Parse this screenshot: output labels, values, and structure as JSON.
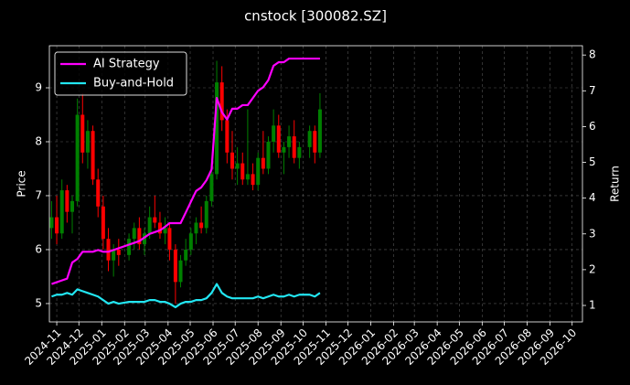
{
  "chart_data": {
    "type": "candlestick",
    "title": "cnstock [300082.SZ]",
    "ylabel": "Price",
    "y2label": "Return",
    "grid": true,
    "legend": "upper left",
    "x": [
      "2024-10-25",
      "2024-11-01",
      "2024-11-08",
      "2024-11-15",
      "2024-11-22",
      "2024-11-29",
      "2024-12-06",
      "2024-12-13",
      "2024-12-20",
      "2024-12-27",
      "2025-01-03",
      "2025-01-10",
      "2025-01-17",
      "2025-01-24",
      "2025-02-07",
      "2025-02-14",
      "2025-02-21",
      "2025-02-28",
      "2025-03-07",
      "2025-03-14",
      "2025-03-21",
      "2025-03-28",
      "2025-04-03",
      "2025-04-11",
      "2025-04-18",
      "2025-04-25",
      "2025-05-02",
      "2025-05-09",
      "2025-05-16",
      "2025-05-23",
      "2025-05-30",
      "2025-06-06",
      "2025-06-13",
      "2025-06-20",
      "2025-06-27",
      "2025-07-04",
      "2025-07-11",
      "2025-07-18",
      "2025-07-25",
      "2025-08-01",
      "2025-08-08",
      "2025-08-15",
      "2025-08-22",
      "2025-08-29",
      "2025-09-05",
      "2025-09-12",
      "2025-09-19",
      "2025-09-26",
      "2025-10-10",
      "2025-10-17",
      "2025-10-24"
    ],
    "xlim": [
      "2024-10-22",
      "2026-10-15"
    ],
    "xticks": [
      "2024-11",
      "2024-12",
      "2025-01",
      "2025-02",
      "2025-03",
      "2025-04",
      "2025-05",
      "2025-06",
      "2025-07",
      "2025-08",
      "2025-09",
      "2025-10",
      "2025-11",
      "2025-12",
      "2026-01",
      "2026-02",
      "2026-03",
      "2026-04",
      "2026-05",
      "2026-06",
      "2026-07",
      "2026-08",
      "2026-09",
      "2026-10"
    ],
    "ylim": [
      4.66,
      9.78
    ],
    "yticks": [
      5,
      6,
      7,
      8,
      9
    ],
    "y2lim": [
      0.54,
      8.26
    ],
    "y2ticks": [
      1,
      2,
      3,
      4,
      5,
      6,
      7,
      8
    ],
    "candles": {
      "up_color": "#008000",
      "down_color": "#ff0000",
      "open": [
        6.4,
        6.6,
        6.3,
        7.1,
        6.7,
        6.9,
        8.5,
        7.8,
        8.2,
        7.3,
        6.8,
        6.2,
        5.8,
        6.0,
        5.9,
        6.2,
        6.4,
        6.1,
        6.3,
        6.6,
        6.5,
        6.3,
        6.4,
        6.0,
        5.4,
        5.8,
        6.0,
        6.3,
        6.5,
        6.4,
        6.9,
        7.4,
        9.1,
        8.4,
        7.8,
        7.5,
        7.6,
        7.3,
        7.4,
        7.2,
        7.7,
        7.5,
        8.0,
        8.3,
        7.8,
        7.9,
        8.1,
        7.7,
        7.9,
        8.2,
        7.8
      ],
      "high": [
        6.9,
        7.0,
        7.3,
        7.2,
        7.0,
        8.8,
        8.9,
        8.4,
        8.3,
        7.5,
        7.0,
        6.4,
        6.1,
        6.2,
        6.3,
        6.5,
        6.6,
        6.4,
        6.8,
        7.0,
        6.7,
        6.6,
        6.5,
        6.1,
        5.9,
        6.2,
        6.4,
        6.6,
        6.8,
        7.0,
        7.6,
        9.5,
        9.4,
        8.6,
        8.2,
        7.9,
        7.8,
        8.6,
        7.6,
        7.8,
        8.2,
        8.1,
        8.6,
        8.5,
        8.0,
        8.3,
        8.4,
        8.0,
        8.3,
        8.3,
        8.9
      ],
      "low": [
        6.2,
        6.1,
        6.2,
        6.5,
        6.3,
        6.8,
        7.6,
        7.5,
        7.2,
        6.6,
        6.0,
        5.6,
        5.5,
        5.7,
        5.8,
        6.0,
        6.0,
        5.9,
        6.2,
        6.4,
        6.2,
        6.1,
        5.8,
        5.0,
        5.3,
        5.7,
        5.9,
        6.1,
        6.3,
        6.3,
        6.8,
        7.3,
        8.2,
        7.6,
        7.3,
        7.2,
        7.2,
        7.2,
        7.1,
        7.1,
        7.4,
        7.4,
        7.8,
        7.7,
        7.4,
        7.7,
        7.6,
        7.5,
        7.7,
        7.6,
        7.7
      ],
      "close": [
        6.6,
        6.3,
        7.1,
        6.7,
        6.9,
        8.5,
        7.8,
        8.2,
        7.3,
        6.8,
        6.2,
        5.8,
        6.0,
        5.9,
        6.2,
        6.4,
        6.1,
        6.3,
        6.6,
        6.5,
        6.3,
        6.4,
        6.0,
        5.4,
        5.8,
        6.0,
        6.3,
        6.5,
        6.4,
        6.9,
        7.4,
        9.1,
        8.4,
        7.8,
        7.5,
        7.6,
        7.3,
        7.4,
        7.2,
        7.7,
        7.5,
        8.0,
        8.3,
        7.8,
        7.9,
        8.1,
        7.7,
        7.9,
        8.2,
        7.8,
        8.6
      ]
    },
    "series": [
      {
        "name": "AI Strategy",
        "color": "#ff00ff",
        "axis": "y2",
        "values": [
          1.6,
          1.65,
          1.7,
          1.75,
          2.2,
          2.3,
          2.5,
          2.5,
          2.5,
          2.55,
          2.5,
          2.5,
          2.55,
          2.6,
          2.7,
          2.75,
          2.8,
          2.9,
          3.0,
          3.05,
          3.1,
          3.2,
          3.3,
          3.3,
          3.3,
          3.6,
          3.9,
          4.2,
          4.3,
          4.5,
          4.8,
          6.8,
          6.4,
          6.2,
          6.5,
          6.5,
          6.6,
          6.6,
          6.8,
          7.0,
          7.1,
          7.3,
          7.7,
          7.8,
          7.8,
          7.9,
          7.9,
          7.9,
          7.9,
          7.9,
          7.9
        ]
      },
      {
        "name": "Buy-and-Hold",
        "color": "#22e6f2",
        "axis": "y2",
        "values": [
          1.25,
          1.3,
          1.3,
          1.35,
          1.3,
          1.45,
          1.4,
          1.35,
          1.3,
          1.25,
          1.15,
          1.05,
          1.1,
          1.05,
          1.1,
          1.1,
          1.1,
          1.1,
          1.15,
          1.15,
          1.1,
          1.1,
          1.05,
          0.95,
          1.05,
          1.1,
          1.1,
          1.15,
          1.15,
          1.2,
          1.35,
          1.6,
          1.35,
          1.25,
          1.2,
          1.2,
          1.2,
          1.2,
          1.2,
          1.25,
          1.2,
          1.25,
          1.3,
          1.25,
          1.25,
          1.3,
          1.25,
          1.3,
          1.3,
          1.25,
          1.35
        ]
      }
    ]
  }
}
